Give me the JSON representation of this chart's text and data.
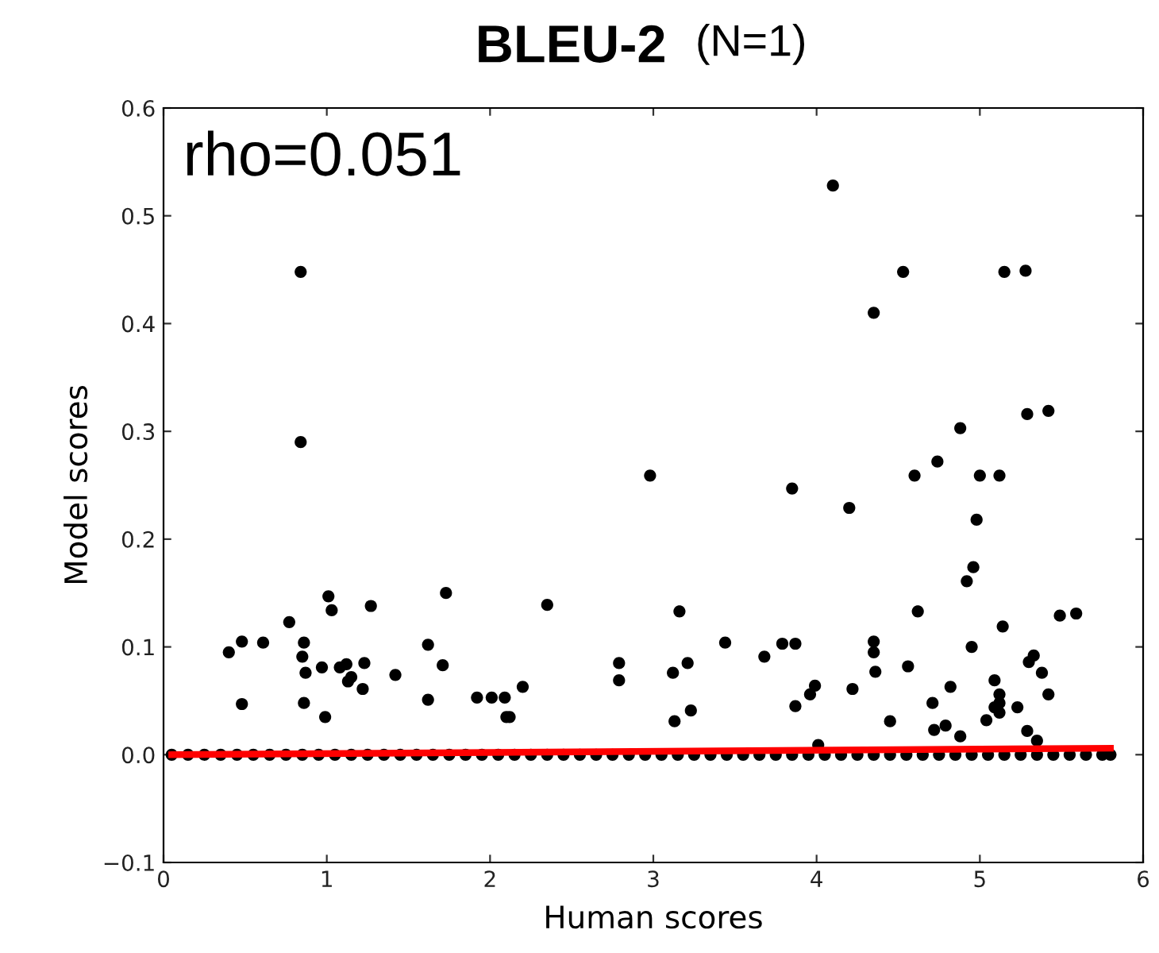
{
  "chart_data": {
    "type": "scatter",
    "title": "BLEU-2",
    "subtitle": "(N=1)",
    "xlabel": "Human scores",
    "ylabel": "Model scores",
    "annotations": [
      "rho=0.051"
    ],
    "xlim": [
      0,
      6
    ],
    "ylim": [
      -0.1,
      0.6
    ],
    "xticks": [
      0,
      1,
      2,
      3,
      4,
      5,
      6
    ],
    "yticks": [
      {
        "value": -0.1,
        "label": "−0.1"
      },
      {
        "value": 0,
        "label": "0.0"
      },
      0.1,
      0.2,
      0.3,
      0.4,
      0.5,
      0.6
    ],
    "grid": false,
    "legend": false,
    "marker": "circle",
    "series": [
      {
        "color": "#000000",
        "x": [
          0.4,
          0.48,
          0.48,
          0.61,
          0.77,
          0.86,
          0.85,
          0.87,
          0.86,
          1.01,
          1.03,
          0.97,
          0.99,
          1.08,
          1.12,
          1.15,
          1.13,
          1.22,
          1.23,
          1.27,
          1.42,
          1.62,
          1.62,
          1.71,
          1.73,
          1.92,
          2.01,
          2.09,
          2.1,
          2.12,
          2.2,
          2.35,
          2.79,
          2.79,
          0.84,
          0.84,
          4.1,
          4.53,
          5.15,
          5.28,
          4.35,
          5.42,
          5.29,
          4.88,
          4.74,
          4.6,
          5.0,
          5.12,
          2.98,
          3.85,
          4.2,
          4.98,
          4.96,
          4.92,
          3.16,
          4.62,
          5.49,
          5.59,
          5.14,
          3.44,
          3.79,
          3.87,
          4.35,
          4.35,
          4.95,
          5.33,
          5.3,
          3.68,
          3.21,
          3.12,
          4.36,
          4.56,
          5.38,
          5.09,
          3.99,
          3.96,
          4.22,
          4.82,
          5.42,
          3.23,
          3.13,
          3.87,
          5.12,
          5.12,
          5.09,
          5.12,
          4.71,
          5.23,
          4.45,
          5.04,
          4.72,
          4.79,
          4.88,
          5.29,
          5.35,
          4.01
        ],
        "values": [
          0.095,
          0.105,
          0.047,
          0.104,
          0.123,
          0.104,
          0.091,
          0.076,
          0.048,
          0.147,
          0.134,
          0.081,
          0.035,
          0.081,
          0.084,
          0.072,
          0.068,
          0.061,
          0.085,
          0.138,
          0.074,
          0.102,
          0.051,
          0.083,
          0.15,
          0.053,
          0.053,
          0.053,
          0.035,
          0.035,
          0.063,
          0.139,
          0.085,
          0.069,
          0.448,
          0.29,
          0.528,
          0.448,
          0.448,
          0.449,
          0.41,
          0.319,
          0.316,
          0.303,
          0.272,
          0.259,
          0.259,
          0.259,
          0.259,
          0.247,
          0.229,
          0.218,
          0.174,
          0.161,
          0.133,
          0.133,
          0.129,
          0.131,
          0.119,
          0.104,
          0.103,
          0.103,
          0.105,
          0.095,
          0.1,
          0.092,
          0.086,
          0.091,
          0.085,
          0.076,
          0.077,
          0.082,
          0.076,
          0.069,
          0.064,
          0.056,
          0.061,
          0.063,
          0.056,
          0.041,
          0.031,
          0.045,
          0.056,
          0.048,
          0.044,
          0.039,
          0.048,
          0.044,
          0.031,
          0.032,
          0.023,
          0.027,
          0.017,
          0.022,
          0.013,
          0.009
        ]
      },
      {
        "color": "#000000",
        "x": [
          0.05,
          0.15,
          0.25,
          0.35,
          0.45,
          0.55,
          0.65,
          0.75,
          0.85,
          0.95,
          1.05,
          1.15,
          1.25,
          1.35,
          1.45,
          1.55,
          1.65,
          1.75,
          1.85,
          1.95,
          2.05,
          2.15,
          2.25,
          2.35,
          2.45,
          2.55,
          2.65,
          2.75,
          2.85,
          2.95,
          3.05,
          3.15,
          3.25,
          3.35,
          3.45,
          3.55,
          3.65,
          3.75,
          3.85,
          3.95,
          4.05,
          4.15,
          4.25,
          4.35,
          4.45,
          4.55,
          4.65,
          4.75,
          4.85,
          4.95,
          5.05,
          5.15,
          5.25,
          5.35,
          5.45,
          5.55,
          5.65,
          5.75,
          5.8
        ],
        "values": [
          0,
          0,
          0,
          0,
          0,
          0,
          0,
          0,
          0,
          0,
          0,
          0,
          0,
          0,
          0,
          0,
          0,
          0,
          0,
          0,
          0,
          0,
          0,
          0,
          0,
          0,
          0,
          0,
          0,
          0,
          0,
          0,
          0,
          0,
          0,
          0,
          0,
          0,
          0,
          0,
          0,
          0,
          0,
          0,
          0,
          0,
          0,
          0,
          0,
          0,
          0,
          0,
          0,
          0,
          0,
          0,
          0,
          0,
          0
        ]
      },
      {
        "type": "line",
        "color": "#ff0000",
        "x": [
          0.05,
          5.8
        ],
        "values": [
          0.0,
          0.006
        ],
        "marker": "none"
      }
    ]
  }
}
